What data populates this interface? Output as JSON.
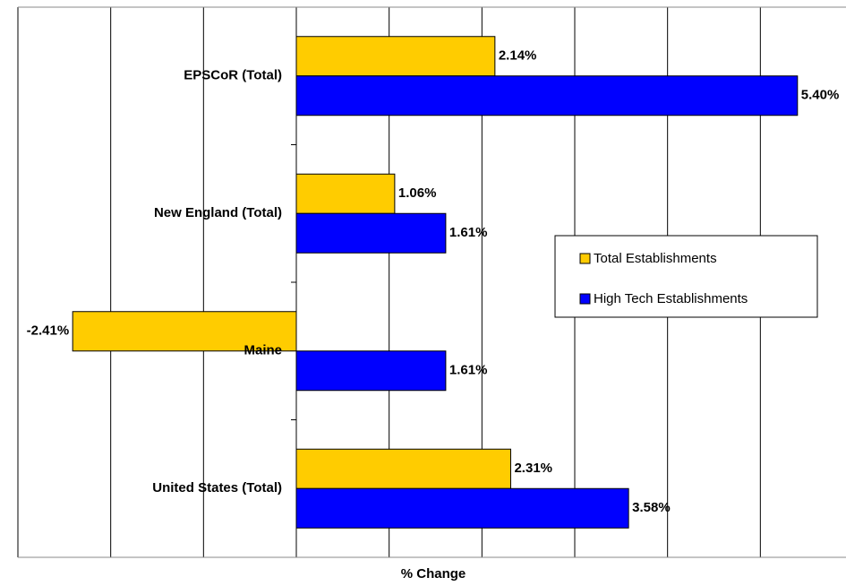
{
  "chart_data": {
    "type": "bar",
    "orientation": "horizontal",
    "xlabel": "% Change",
    "categories": [
      "EPSCoR  (Total)",
      "New England (Total)",
      "Maine",
      "United States (Total)"
    ],
    "series": [
      {
        "name": "Total Establishments",
        "color": "#ffcc00",
        "values": [
          2.14,
          1.06,
          -2.41,
          2.31
        ],
        "value_labels": [
          "2.14%",
          "1.06%",
          "-2.41%",
          "2.31%"
        ]
      },
      {
        "name": "High Tech Establishments",
        "color": "#0000ff",
        "values": [
          5.4,
          1.61,
          1.61,
          3.58
        ],
        "value_labels": [
          "5.40%",
          "1.61%",
          "1.61%",
          "3.58%"
        ]
      }
    ],
    "xlim": [
      -3,
      6
    ],
    "xticks": [
      -3,
      -2,
      -1,
      0,
      1,
      2,
      3,
      4,
      5,
      6
    ],
    "grid": true,
    "legend": "right"
  }
}
